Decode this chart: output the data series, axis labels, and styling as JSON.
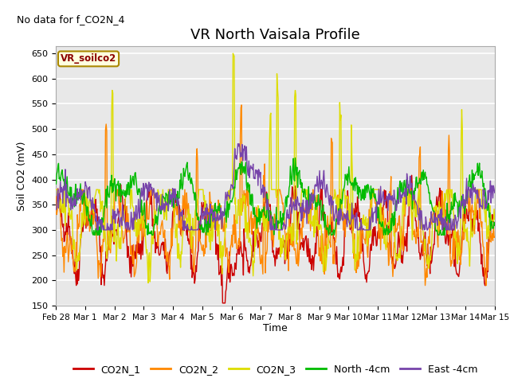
{
  "title": "VR North Vaisala Profile",
  "subtitle": "No data for f_CO2N_4",
  "ylabel": "Soil CO2 (mV)",
  "xlabel": "Time",
  "ylim": [
    150,
    665
  ],
  "yticks": [
    150,
    200,
    250,
    300,
    350,
    400,
    450,
    500,
    550,
    600,
    650
  ],
  "x_tick_labels": [
    "Feb 28",
    "Mar 1",
    "Mar 2",
    "Mar 3",
    "Mar 4",
    "Mar 5",
    "Mar 6",
    "Mar 7",
    "Mar 8",
    "Mar 9",
    "Mar 10",
    "Mar 11",
    "Mar 12",
    "Mar 13",
    "Mar 14",
    "Mar 15"
  ],
  "legend_labels": [
    "CO2N_1",
    "CO2N_2",
    "CO2N_3",
    "North -4cm",
    "East -4cm"
  ],
  "line_colors": [
    "#cc0000",
    "#ff8800",
    "#dddd00",
    "#00bb00",
    "#7744aa"
  ],
  "legend_box_label": "VR_soilco2",
  "plot_bg_color": "#e8e8e8",
  "grid_color": "#ffffff",
  "title_fontsize": 13,
  "label_fontsize": 9,
  "tick_fontsize": 8,
  "legend_fontsize": 9,
  "subtitle_fontsize": 9
}
